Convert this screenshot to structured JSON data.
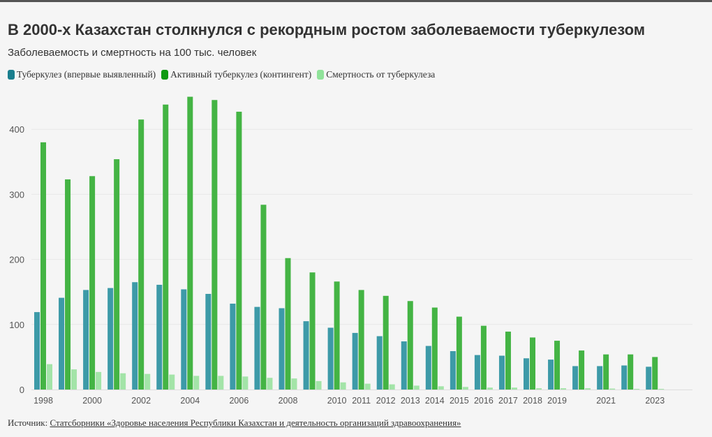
{
  "title": "В 2000-х Казахстан столкнулся с рекордным ростом заболеваемости туберкулезом",
  "subtitle": "Заболеваемость и смертность на 100 тыс. человек",
  "source": {
    "label": "Источник:",
    "link_text": "Статсборники «Здоровье населения Республики Казахстан и деятельность организаций здравоохранения»"
  },
  "chart_data": {
    "type": "bar",
    "title": "В 2000-х Казахстан столкнулся с рекордным ростом заболеваемости туберкулезом",
    "subtitle": "Заболеваемость и смертность на 100 тыс. человек",
    "categories": [
      1998,
      1999,
      2000,
      2001,
      2002,
      2003,
      2004,
      2005,
      2006,
      2007,
      2008,
      2009,
      2010,
      2011,
      2012,
      2013,
      2014,
      2015,
      2016,
      2017,
      2018,
      2019,
      2020,
      2021,
      2022,
      2023
    ],
    "x_tick_labels": [
      "1998",
      "2000",
      "2002",
      "2004",
      "2006",
      "2008",
      "2010",
      "2011",
      "2012",
      "2013",
      "2014",
      "2015",
      "2016",
      "2017",
      "2018",
      "2019",
      "2021",
      "2023"
    ],
    "y_ticks": [
      0,
      100,
      200,
      300,
      400
    ],
    "ylim": [
      0,
      450
    ],
    "grid": true,
    "legend_position": "top-left",
    "series": [
      {
        "name": "Туберкулез (впервые выявленный)",
        "color": "#3d9aa8",
        "values": [
          119,
          141,
          153,
          156,
          165,
          161,
          154,
          147,
          132,
          127,
          125,
          105,
          95,
          87,
          82,
          74,
          67,
          59,
          53,
          52,
          48,
          46,
          36,
          36,
          37,
          35
        ]
      },
      {
        "name": "Активный туберкулез (контингент)",
        "color": "#44b444",
        "values": [
          380,
          323,
          328,
          354,
          415,
          438,
          450,
          445,
          427,
          284,
          202,
          180,
          166,
          153,
          144,
          136,
          126,
          112,
          98,
          89,
          80,
          75,
          60,
          54,
          54,
          50
        ]
      },
      {
        "name": "Смертность от туберкулеза",
        "color": "#a3e4a8",
        "values": [
          39,
          31,
          27,
          25,
          24,
          23,
          21,
          21,
          20,
          18,
          17,
          13,
          11,
          9,
          8,
          6,
          5,
          4,
          3,
          3,
          2,
          2,
          2,
          1.5,
          1,
          1
        ]
      }
    ]
  }
}
